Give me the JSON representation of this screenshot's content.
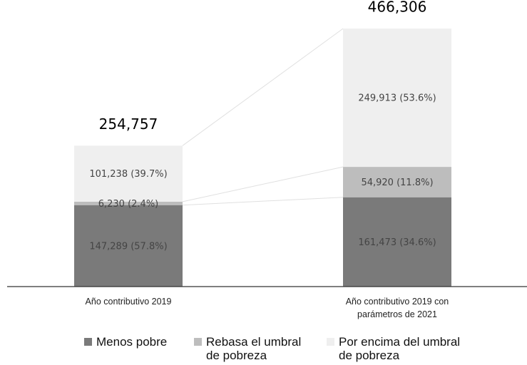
{
  "chart_data": {
    "type": "stacked_bar",
    "categories": [
      "Año contributivo 2019",
      "Año contributivo 2019 con parámetros de 2021"
    ],
    "series": [
      {
        "name": "Menos pobre",
        "color": "#7a7a7a",
        "values": [
          147289,
          161473
        ],
        "value_labels": [
          "147,289 (57.8%)",
          "161,473 (34.6%)"
        ]
      },
      {
        "name": "Rebasa el umbral de pobreza",
        "color": "#bdbdbd",
        "values": [
          6230,
          54920
        ],
        "value_labels": [
          "6,230 (2.4%)",
          "54,920 (11.8%)"
        ]
      },
      {
        "name": "Por encima del umbral de pobreza",
        "color": "#efefef",
        "values": [
          101238,
          249913
        ],
        "value_labels": [
          "101,238 (39.7%)",
          "249,913 (53.6%)"
        ]
      }
    ],
    "totals": {
      "values": [
        254757,
        466306
      ],
      "value_labels": [
        "254,757",
        "466,306"
      ]
    },
    "ylim": [
      0,
      500000
    ]
  }
}
